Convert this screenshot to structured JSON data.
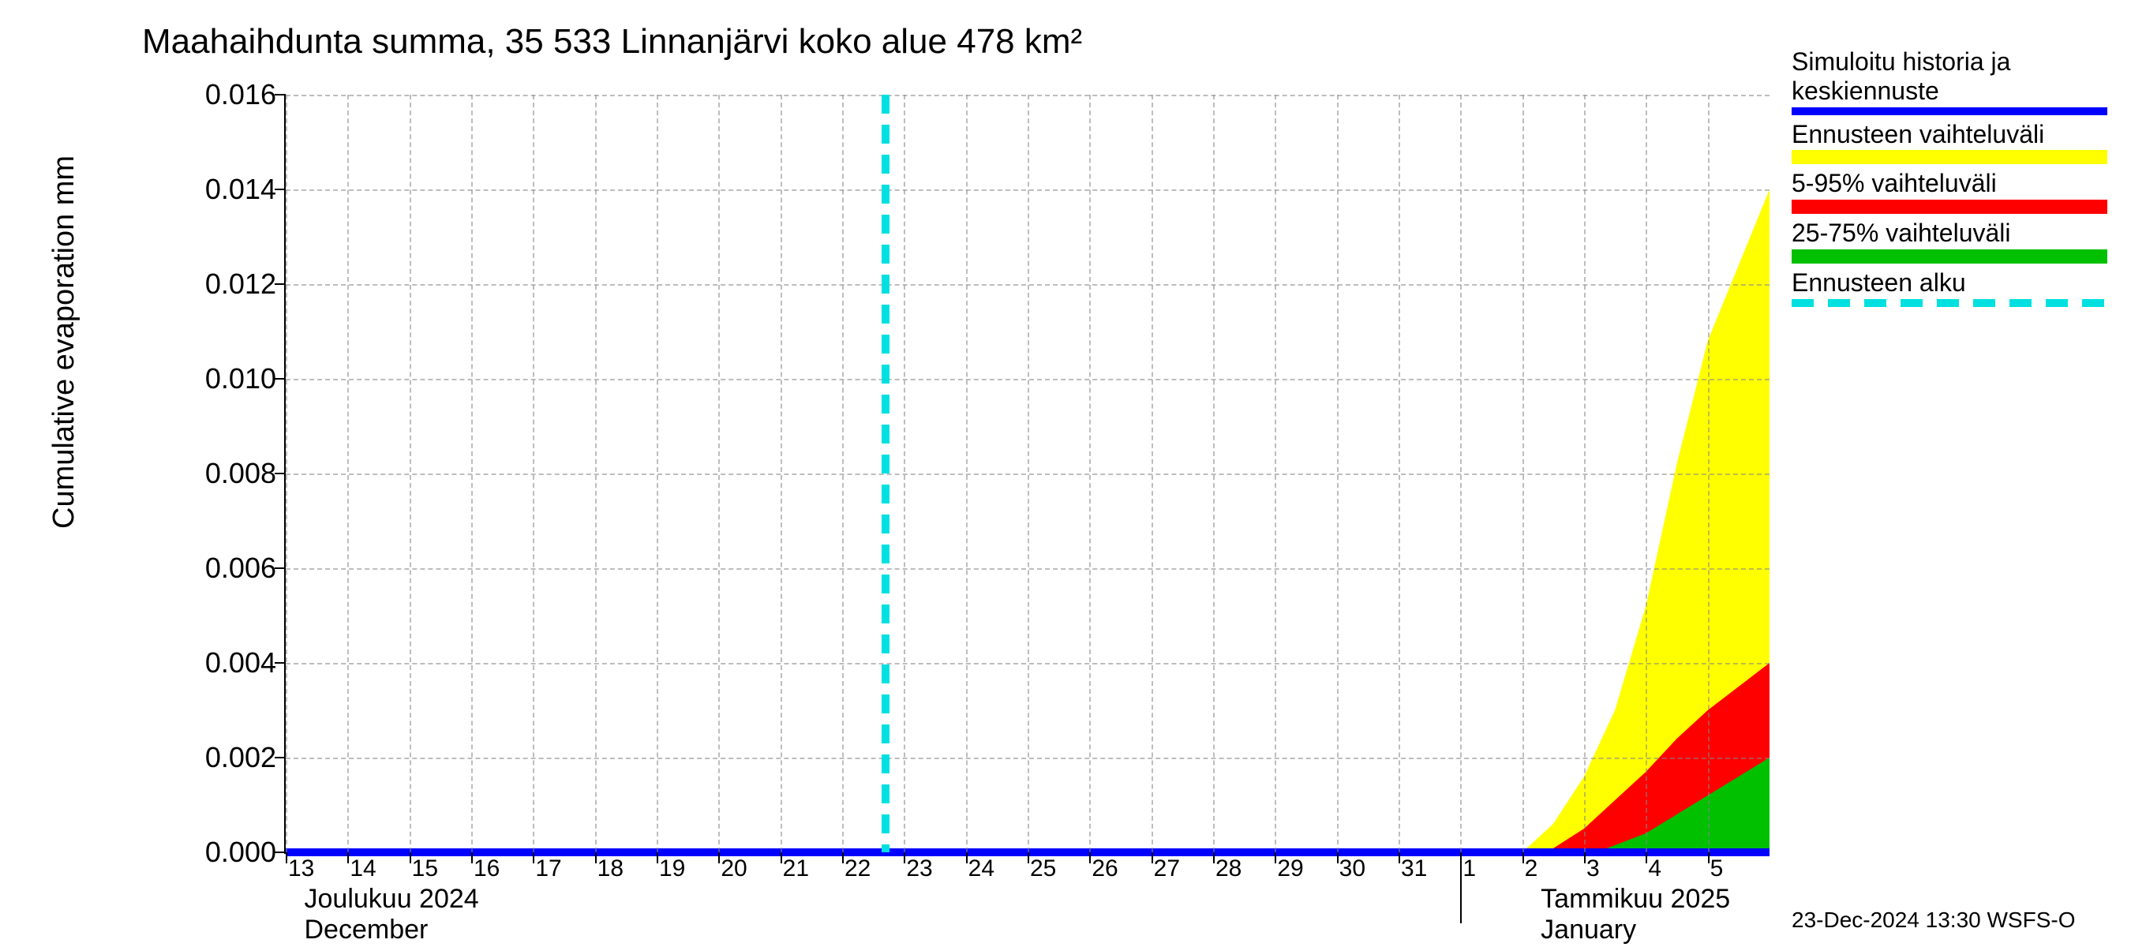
{
  "chart": {
    "type": "area",
    "title": "Maahaihdunta summa, 35 533 Linnanjärvi koko alue 478 km²",
    "ylabel": "Cumulative evaporation   mm",
    "title_fontsize": 44,
    "label_fontsize": 38,
    "tick_fontsize": 36,
    "xtick_fontsize": 30,
    "background_color": "#ffffff",
    "grid_color": "#888888",
    "axis_color": "#000000",
    "ylim": [
      0.0,
      0.016
    ],
    "ytick_labels": [
      "0.000",
      "0.002",
      "0.004",
      "0.006",
      "0.008",
      "0.010",
      "0.012",
      "0.014",
      "0.016"
    ],
    "ytick_values": [
      0.0,
      0.002,
      0.004,
      0.006,
      0.008,
      0.01,
      0.012,
      0.014,
      0.016
    ],
    "x_start_day": 13,
    "x_days_total": 24,
    "x_day_labels": [
      "13",
      "14",
      "15",
      "16",
      "17",
      "18",
      "19",
      "20",
      "21",
      "22",
      "23",
      "24",
      "25",
      "26",
      "27",
      "28",
      "29",
      "30",
      "31",
      "1",
      "2",
      "3",
      "4",
      "5"
    ],
    "month_labels": {
      "left": {
        "fi": "Joulukuu  2024",
        "en": "December",
        "xday": 13.3
      },
      "right": {
        "fi": "Tammikuu  2025",
        "en": "January",
        "xday": 33.3
      }
    },
    "month_separator_day": 32,
    "forecast_start_day": 22.7,
    "forecast_line_color": "#00e0e0",
    "series": {
      "main_line": {
        "color": "#0000ff",
        "width": 10,
        "x": [
          13,
          37
        ],
        "y": [
          0.0,
          0.0
        ]
      },
      "yellow_band": {
        "color": "#ffff00",
        "x": [
          33.0,
          33.5,
          34.0,
          34.5,
          35.0,
          35.5,
          36.0,
          36.5,
          37.0
        ],
        "upper": [
          0.0,
          0.0006,
          0.0016,
          0.003,
          0.0052,
          0.0082,
          0.0108,
          0.0124,
          0.014
        ],
        "lower": [
          0.0,
          0.0,
          0.0,
          0.0,
          0.0,
          0.0,
          0.0,
          0.0,
          0.0
        ]
      },
      "red_band": {
        "color": "#ff0000",
        "x": [
          33.4,
          34.0,
          34.5,
          35.0,
          35.5,
          36.0,
          36.5,
          37.0
        ],
        "upper": [
          0.0,
          0.0005,
          0.0011,
          0.0017,
          0.0024,
          0.003,
          0.0035,
          0.004
        ],
        "lower": [
          0.0,
          0.0,
          0.0,
          0.0,
          0.0,
          0.0,
          0.0,
          0.0
        ]
      },
      "green_band": {
        "color": "#00c000",
        "x": [
          34.2,
          35.0,
          35.5,
          36.0,
          36.5,
          37.0
        ],
        "upper": [
          0.0,
          0.0004,
          0.0008,
          0.0012,
          0.0016,
          0.002
        ],
        "lower": [
          0.0,
          0.0,
          0.0,
          0.0,
          0.0,
          0.0
        ]
      }
    },
    "legend": [
      {
        "label": "Simuloitu historia ja\nkeskiennuste",
        "type": "line",
        "color": "#0000ff"
      },
      {
        "label": "Ennusteen vaihteluväli",
        "type": "band",
        "color": "#ffff00"
      },
      {
        "label": "5-95% vaihteluväli",
        "type": "band",
        "color": "#ff0000"
      },
      {
        "label": "25-75% vaihteluväli",
        "type": "band",
        "color": "#00c000"
      },
      {
        "label": "Ennusteen alku",
        "type": "dashed",
        "color": "#00e0e0"
      }
    ],
    "footer": "23-Dec-2024 13:30 WSFS-O"
  }
}
